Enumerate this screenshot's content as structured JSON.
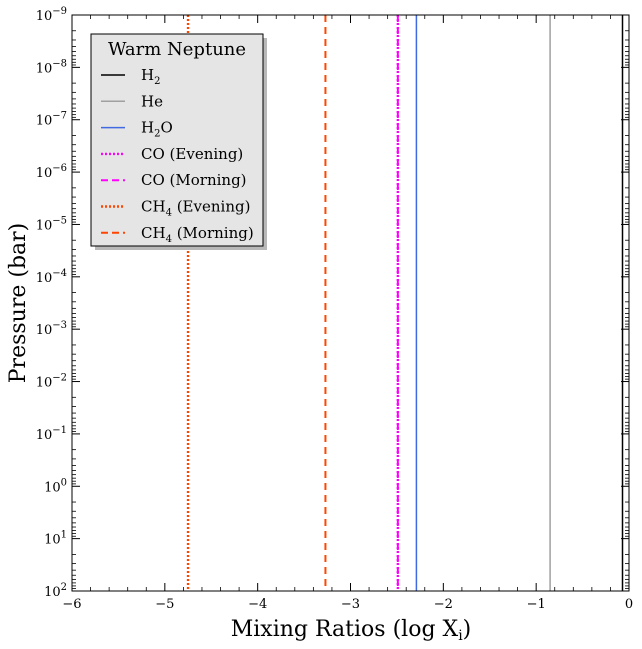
{
  "chart_data": {
    "type": "line",
    "xlabel": "Mixing Ratios (log X",
    "xlabel_sub": "i",
    "xlabel_close": ")",
    "ylabel": "Pressure (bar)",
    "xlim": [
      -6,
      0
    ],
    "ylim_log10": [
      2,
      -9
    ],
    "y_log_scale": true,
    "y_inverted": true,
    "x_ticks": [
      -6,
      -5,
      -4,
      -3,
      -2,
      -1,
      0
    ],
    "x_tick_labels": [
      "−6",
      "−5",
      "−4",
      "−3",
      "−2",
      "−1",
      "0"
    ],
    "y_tick_exponents": [
      -9,
      -8,
      -7,
      -6,
      -5,
      -4,
      -3,
      -2,
      -1,
      0,
      1,
      2
    ],
    "y_tick_exponent_labels": [
      "−9",
      "−8",
      "−7",
      "−6",
      "−5",
      "−4",
      "−3",
      "−2",
      "−1",
      "0",
      "1",
      "2"
    ],
    "y_tick_base": "10",
    "legend": {
      "title": "Warm Neptune",
      "placement": "top-left"
    },
    "series": [
      {
        "name": "H",
        "name_sub": "2",
        "name_rest": "",
        "x": -0.07,
        "color": "#000000",
        "style": "solid"
      },
      {
        "name": "He",
        "name_sub": "",
        "name_rest": "",
        "x": -0.85,
        "color": "#a0a0a0",
        "style": "solid"
      },
      {
        "name": "H",
        "name_sub": "2",
        "name_rest": "O",
        "x": -2.29,
        "color": "#4169e1",
        "style": "solid"
      },
      {
        "name": "CO (Evening)",
        "name_sub": "",
        "name_rest": "",
        "x": -2.49,
        "color": "#ff00ff",
        "style": "dotted"
      },
      {
        "name": "CO (Morning)",
        "name_sub": "",
        "name_rest": "",
        "x": -2.49,
        "color": "#ff00ff",
        "style": "dashed"
      },
      {
        "name": "CH",
        "name_sub": "4",
        "name_rest": " (Evening)",
        "x": -4.75,
        "color": "#ff4500",
        "style": "dotted"
      },
      {
        "name": "CH",
        "name_sub": "4",
        "name_rest": " (Morning)",
        "x": -3.27,
        "color": "#ff4500",
        "style": "dashed"
      }
    ]
  }
}
